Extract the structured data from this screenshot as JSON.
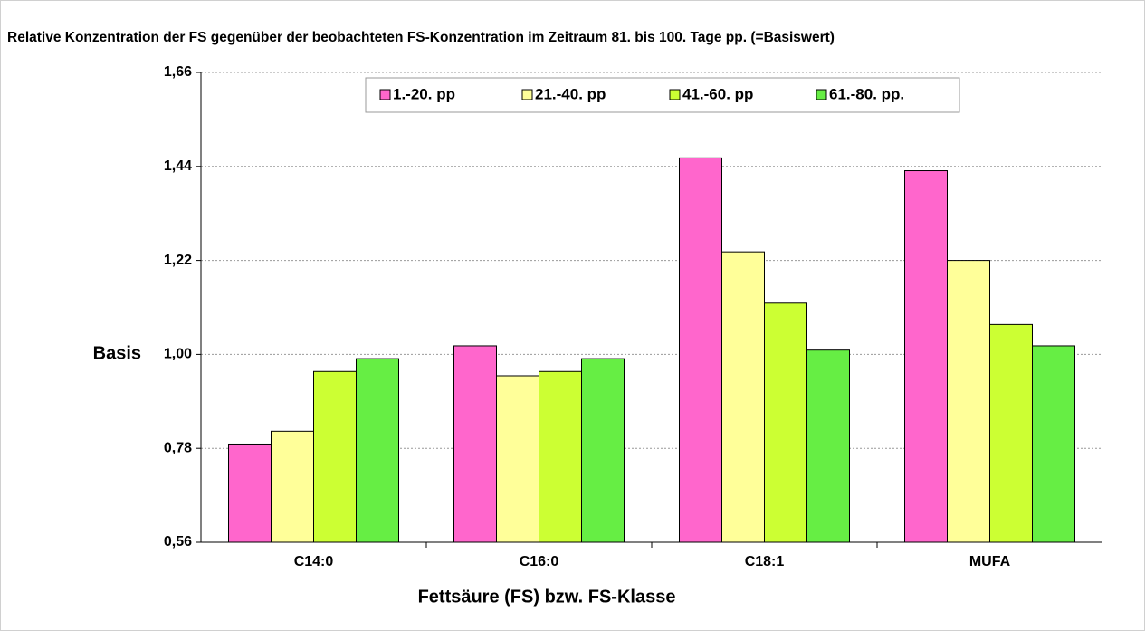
{
  "chart_data": {
    "type": "bar",
    "title": "Relative Konzentration der FS gegenüber der beobachteten FS-Konzentration im Zeitraum 81. bis 100. Tage pp. (=Basiswert)",
    "ylabel": "Basis",
    "xlabel": "Fettsäure (FS) bzw. FS-Klasse",
    "categories": [
      "C14:0",
      "C16:0",
      "C18:1",
      "MUFA"
    ],
    "series": [
      {
        "name": "1.-20. pp",
        "color": "#ff66cc",
        "values": [
          0.79,
          1.02,
          1.46,
          1.43
        ]
      },
      {
        "name": "21.-40. pp",
        "color": "#ffff99",
        "values": [
          0.82,
          0.95,
          1.24,
          1.22
        ]
      },
      {
        "name": "41.-60. pp",
        "color": "#ccff33",
        "values": [
          0.96,
          0.96,
          1.12,
          1.07
        ]
      },
      {
        "name": "61.-80. pp.",
        "color": "#66ee44",
        "values": [
          0.99,
          0.99,
          1.01,
          1.02
        ]
      }
    ],
    "ylim": [
      0.56,
      1.66
    ],
    "yticks": [
      {
        "value": 0.56,
        "label": "0,56"
      },
      {
        "value": 0.78,
        "label": "0,78"
      },
      {
        "value": 1.0,
        "label": "1,00"
      },
      {
        "value": 1.22,
        "label": "1,22"
      },
      {
        "value": 1.44,
        "label": "1,44"
      },
      {
        "value": 1.66,
        "label": "1,66"
      }
    ],
    "grid": true,
    "legend": "top"
  }
}
